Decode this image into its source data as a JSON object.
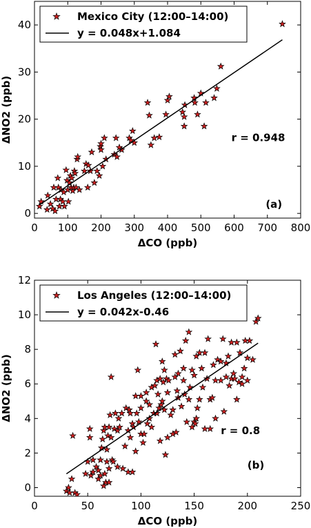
{
  "chart_data": [
    {
      "type": "scatter",
      "xlabel": "ΔCO (ppb)",
      "ylabel": "ΔNO2 (ppb)",
      "xlim": [
        0,
        800
      ],
      "ylim": [
        -1,
        45
      ],
      "xticks": [
        0,
        100,
        200,
        300,
        400,
        500,
        600,
        700,
        800
      ],
      "yticks": [
        0,
        10,
        20,
        30,
        40
      ],
      "grid": false,
      "legend_position": "top-left",
      "series": [
        {
          "name": "Mexico City (12:00–14:00)",
          "kind": "points",
          "color": "#cc1f1f",
          "x": [
            15,
            20,
            38,
            40,
            48,
            55,
            58,
            62,
            65,
            70,
            72,
            75,
            78,
            80,
            85,
            88,
            90,
            95,
            98,
            100,
            102,
            105,
            108,
            110,
            112,
            115,
            118,
            120,
            122,
            125,
            128,
            130,
            135,
            150,
            155,
            160,
            162,
            168,
            172,
            180,
            188,
            195,
            198,
            200,
            200,
            205,
            210,
            215,
            240,
            245,
            248,
            255,
            262,
            285,
            290,
            295,
            300,
            340,
            345,
            350,
            360,
            375,
            395,
            400,
            405,
            445,
            450,
            450,
            452,
            480,
            482,
            490,
            500,
            510,
            515,
            540,
            548,
            560,
            745
          ],
          "y": [
            1.5,
            2.5,
            0.8,
            3.8,
            2,
            1,
            5.5,
            0.5,
            3,
            7.5,
            5.5,
            1.5,
            3,
            5,
            2.5,
            4.5,
            1.5,
            9.2,
            7,
            5,
            2.5,
            6.5,
            8,
            5.5,
            7.5,
            4.8,
            5.5,
            9,
            8.5,
            5.5,
            11.5,
            12,
            5,
            9,
            10.5,
            5.5,
            10.2,
            9,
            13,
            6.5,
            9,
            8,
            14.2,
            13.5,
            14.8,
            10,
            16,
            11.5,
            12.5,
            16,
            12,
            14,
            13.5,
            16,
            15.5,
            17.5,
            15,
            23.5,
            20.8,
            14.5,
            16,
            16.2,
            21,
            24,
            24.8,
            21.5,
            18.5,
            20.5,
            23,
            24.5,
            23.5,
            21,
            25.5,
            18.5,
            23.5,
            24.5,
            26.5,
            31.2,
            40.2
          ]
        },
        {
          "name": "y = 0.048x+1.084",
          "kind": "line",
          "slope": 0.048,
          "intercept": 1.084,
          "x_range": [
            15,
            745
          ]
        }
      ],
      "annotations": [
        {
          "text": "r = 0.948",
          "x": 592,
          "y": 15.3
        },
        {
          "text": "(a)",
          "x": 695,
          "y": 1.2
        }
      ]
    },
    {
      "type": "scatter",
      "xlabel": "ΔCO (ppb)",
      "ylabel": "ΔNO2 (ppb)",
      "xlim": [
        0,
        250
      ],
      "ylim": [
        -0.5,
        12
      ],
      "xticks": [
        0,
        50,
        100,
        150,
        200,
        250
      ],
      "yticks": [
        0,
        2,
        4,
        6,
        8,
        10,
        12
      ],
      "grid": false,
      "legend_position": "top-left",
      "series": [
        {
          "name": "Los Angeles (12:00–14:00)",
          "kind": "points",
          "color": "#cc1f1f",
          "x": [
            30,
            32,
            33,
            35,
            36,
            38,
            40,
            48,
            50,
            52,
            52,
            53,
            55,
            55,
            58,
            60,
            60,
            62,
            62,
            63,
            64,
            65,
            65,
            66,
            66,
            67,
            68,
            68,
            69,
            70,
            70,
            70,
            71,
            72,
            72,
            73,
            74,
            75,
            76,
            78,
            78,
            79,
            80,
            82,
            83,
            85,
            86,
            88,
            88,
            89,
            90,
            90,
            92,
            92,
            93,
            95,
            95,
            96,
            97,
            98,
            100,
            100,
            100,
            102,
            103,
            105,
            105,
            106,
            108,
            108,
            110,
            110,
            112,
            113,
            114,
            115,
            115,
            116,
            117,
            118,
            118,
            119,
            120,
            120,
            121,
            122,
            122,
            123,
            124,
            125,
            125,
            126,
            128,
            130,
            130,
            132,
            132,
            133,
            134,
            135,
            135,
            137,
            138,
            140,
            140,
            141,
            142,
            143,
            145,
            145,
            146,
            148,
            148,
            150,
            150,
            151,
            152,
            152,
            153,
            155,
            155,
            157,
            158,
            160,
            160,
            162,
            163,
            165,
            165,
            167,
            168,
            170,
            170,
            172,
            175,
            175,
            177,
            178,
            180,
            180,
            182,
            183,
            185,
            185,
            187,
            188,
            190,
            190,
            192,
            193,
            195,
            195,
            197,
            198,
            200,
            200,
            202,
            205,
            208,
            210
          ],
          "y": [
            -0.2,
            0.0,
            -0.3,
            0.5,
            3.0,
            -0.3,
            -0.4,
            0.8,
            1.5,
            2.9,
            3.4,
            0.7,
            0.9,
            1.6,
            1.2,
            0.5,
            1.0,
            0.7,
            1.6,
            2.3,
            2.8,
            3.3,
            0.1,
            0.8,
            3.5,
            0.3,
            1.5,
            2.2,
            3.0,
            0.3,
            1.1,
            3.5,
            4.2,
            6.4,
            2.9,
            1.6,
            1.5,
            3.4,
            4.3,
            1.2,
            3.3,
            4.0,
            3.5,
            4.3,
            1.1,
            2.4,
            4.6,
            0.9,
            3.3,
            4.5,
            2.9,
            4.3,
            0.9,
            3.7,
            3.5,
            5.3,
            2.1,
            4.3,
            6.8,
            3.8,
            3.1,
            4.6,
            5.3,
            2.6,
            3.1,
            5.0,
            5.5,
            3.7,
            4.0,
            4.8,
            5.8,
            3.5,
            4.3,
            5.9,
            8.3,
            4.3,
            6.2,
            5.4,
            4.6,
            6.3,
            2.7,
            4.8,
            5.0,
            7.3,
            6.1,
            6.8,
            4.5,
            1.9,
            6.3,
            2.9,
            5.5,
            6.2,
            4.2,
            4.5,
            3.1,
            6.4,
            7.7,
            3.2,
            5.6,
            6.6,
            5.2,
            7.9,
            4.7,
            6.2,
            6.9,
            5.4,
            8.5,
            3.8,
            5.1,
            9.0,
            5.8,
            6.8,
            3.5,
            6.5,
            3.8,
            3.7,
            4.0,
            7.6,
            4.6,
            5.1,
            7.8,
            6.9,
            5.8,
            3.4,
            7.8,
            6.3,
            8.6,
            5.1,
            3.4,
            5.2,
            7.1,
            4.0,
            6.2,
            7.4,
            6.2,
            7.3,
            8.6,
            4.4,
            6.4,
            7.2,
            7.6,
            5.9,
            6.3,
            8.4,
            6.6,
            6.3,
            5.1,
            8.4,
            6.1,
            7.8,
            6.0,
            6.4,
            6.9,
            8.5,
            7.5,
            6.2,
            8.5,
            7.4,
            9.6,
            9.8
          ]
        },
        {
          "name": "y = 0.042x-0.46",
          "kind": "line",
          "slope": 0.042,
          "intercept": -0.46,
          "x_range": [
            30,
            210
          ]
        }
      ],
      "annotations": [
        {
          "text": "r = 0.8",
          "x": 175,
          "y": 3.1
        },
        {
          "text": "(b)",
          "x": 200,
          "y": 1.1
        }
      ]
    }
  ]
}
